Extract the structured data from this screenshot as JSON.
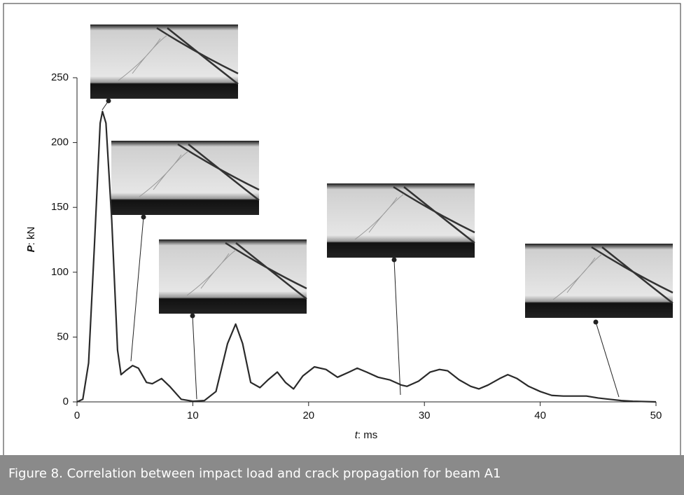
{
  "chart_data": {
    "type": "line",
    "x_label": {
      "symbol": "t",
      "unit": ": ms"
    },
    "y_label": {
      "symbol": "P",
      "unit": ": kN"
    },
    "xlim": [
      0,
      50
    ],
    "ylim": [
      0,
      250
    ],
    "xticks": [
      0,
      10,
      20,
      30,
      40,
      50
    ],
    "yticks": [
      0,
      50,
      100,
      150,
      200,
      250
    ],
    "x": [
      0,
      0.5,
      1,
      1.5,
      2,
      2.2,
      2.5,
      3,
      3.5,
      3.8,
      4.2,
      4.8,
      5.3,
      6,
      6.5,
      7.3,
      8,
      9,
      10,
      11,
      12,
      13,
      13.7,
      14.3,
      15,
      15.8,
      16.5,
      17.3,
      18,
      18.7,
      19.5,
      20.5,
      21.5,
      22.5,
      23.5,
      24.2,
      25,
      26,
      27,
      28,
      28.5,
      29.5,
      30.5,
      31.3,
      32,
      33,
      34,
      34.7,
      35.5,
      36.5,
      37.2,
      38,
      39,
      40,
      41,
      42,
      43,
      44,
      45,
      46,
      47,
      48,
      50
    ],
    "series": [
      {
        "color": "#2a2a2a",
        "values": [
          0,
          2,
          30,
          120,
          215,
          224,
          215,
          140,
          40,
          21,
          24,
          28,
          26,
          15,
          14,
          18,
          12,
          2,
          0.5,
          1,
          8,
          45,
          60,
          45,
          15,
          11,
          17,
          23,
          15,
          10,
          20,
          27,
          25,
          19,
          23,
          26,
          23,
          19,
          17,
          13,
          12,
          16,
          23,
          25,
          24,
          17,
          12,
          10,
          13,
          18,
          21,
          18,
          12,
          8,
          5,
          4.5,
          4.5,
          4.5,
          3,
          2,
          1,
          0.5,
          0
        ]
      }
    ]
  },
  "caption": "Figure 8. Correlation between impact load and crack propagation for beam A1"
}
